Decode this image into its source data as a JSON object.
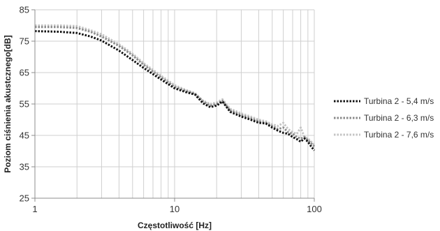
{
  "chart_data": {
    "type": "line",
    "xlabel": "Częstotliwość [Hz]",
    "ylabel": "Poziom  ciśnienia akustcznego[dB]",
    "x_scale": "log",
    "xlim": [
      1,
      100
    ],
    "ylim": [
      25,
      85
    ],
    "x_ticks": [
      1,
      10,
      100
    ],
    "y_ticks": [
      25,
      35,
      45,
      55,
      65,
      75,
      85
    ],
    "grid": true,
    "legend_position": "right",
    "series": [
      {
        "name": "Turbina 2 - 5,4 m/s",
        "color": "#111111",
        "x": [
          1,
          1.5,
          2,
          2.5,
          3,
          4,
          5,
          6,
          8,
          10,
          12,
          14,
          16,
          18,
          20,
          22,
          25,
          30,
          35,
          40,
          45,
          50,
          55,
          60,
          65,
          70,
          75,
          80,
          85,
          90,
          95,
          100
        ],
        "y": [
          78.2,
          78.0,
          77.6,
          76.5,
          75.2,
          72.0,
          69.0,
          66.5,
          62.8,
          60.0,
          58.8,
          58.0,
          55.2,
          54.0,
          54.5,
          55.8,
          52.5,
          51.0,
          50.0,
          49.0,
          48.8,
          47.5,
          46.5,
          45.8,
          45.5,
          44.5,
          43.8,
          43.0,
          44.0,
          43.0,
          41.5,
          40.2
        ]
      },
      {
        "name": "Turbina 2 - 6,3 m/s",
        "color": "#8a8a8a",
        "x": [
          1,
          1.5,
          2,
          2.5,
          3,
          4,
          5,
          6,
          8,
          10,
          12,
          14,
          16,
          18,
          20,
          22,
          25,
          30,
          35,
          40,
          45,
          50,
          55,
          60,
          65,
          70,
          75,
          80,
          85,
          90,
          95,
          100
        ],
        "y": [
          79.5,
          79.5,
          79.2,
          78.0,
          76.5,
          73.5,
          70.5,
          67.5,
          63.5,
          60.5,
          59.2,
          58.2,
          55.8,
          54.5,
          55.0,
          56.0,
          53.0,
          51.5,
          50.5,
          49.5,
          49.0,
          48.0,
          47.0,
          47.5,
          46.0,
          45.5,
          44.5,
          44.0,
          44.5,
          43.5,
          42.5,
          41.5
        ]
      },
      {
        "name": "Turbina 2 - 7,6 m/s",
        "color": "#c4c4c4",
        "x": [
          1,
          1.5,
          2,
          2.5,
          3,
          4,
          5,
          6,
          8,
          10,
          12,
          14,
          16,
          18,
          20,
          22,
          25,
          30,
          35,
          40,
          45,
          50,
          55,
          60,
          65,
          70,
          75,
          80,
          85,
          90,
          95,
          100
        ],
        "y": [
          80.0,
          80.0,
          79.8,
          78.5,
          77.2,
          74.0,
          71.0,
          68.0,
          64.0,
          61.0,
          59.5,
          58.5,
          56.0,
          55.0,
          55.5,
          56.5,
          53.5,
          52.0,
          51.0,
          50.0,
          49.5,
          48.5,
          48.0,
          49.0,
          47.0,
          46.0,
          45.5,
          47.5,
          44.5,
          44.0,
          43.0,
          42.0
        ]
      }
    ]
  }
}
